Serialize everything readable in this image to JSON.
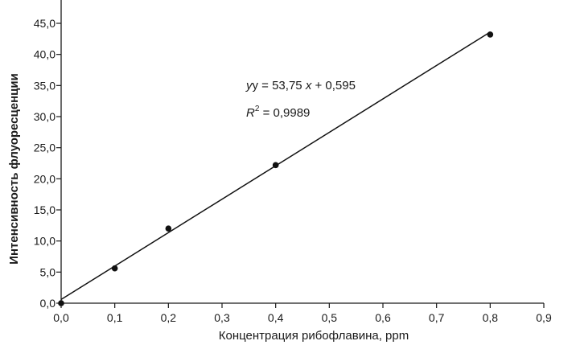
{
  "chart_data": {
    "type": "scatter",
    "xlabel": "Концентрация рибофлавина, ppm",
    "ylabel": "Интенсивность флуоресценции",
    "xlim": [
      0,
      0.9
    ],
    "ylim": [
      0,
      45
    ],
    "x_ticks": [
      "0,0",
      "0,1",
      "0,2",
      "0,3",
      "0,4",
      "0,5",
      "0,6",
      "0,7",
      "0,8",
      "0,9"
    ],
    "y_ticks": [
      "0,0",
      "5,0",
      "10,0",
      "15,0",
      "20,0",
      "25,0",
      "30,0",
      "35,0",
      "40,0",
      "45,0"
    ],
    "series": [
      {
        "x": [
          0.0,
          0.1,
          0.2,
          0.4,
          0.8
        ],
        "y": [
          0.0,
          5.6,
          12.0,
          22.2,
          43.2
        ]
      }
    ],
    "trendline": {
      "slope": 53.75,
      "intercept": 0.595
    },
    "annotations": {
      "equation_prefix": "y = 53,75 ",
      "equation_var": "x",
      "equation_suffix": " + 0,595",
      "r2_prefix": "R",
      "r2_exp": "2",
      "r2_suffix": " = 0,9989"
    },
    "grid": false,
    "legend": "none",
    "colors": {
      "axis": "#1a1a1a",
      "marker": "#111111",
      "line": "#111111"
    }
  }
}
